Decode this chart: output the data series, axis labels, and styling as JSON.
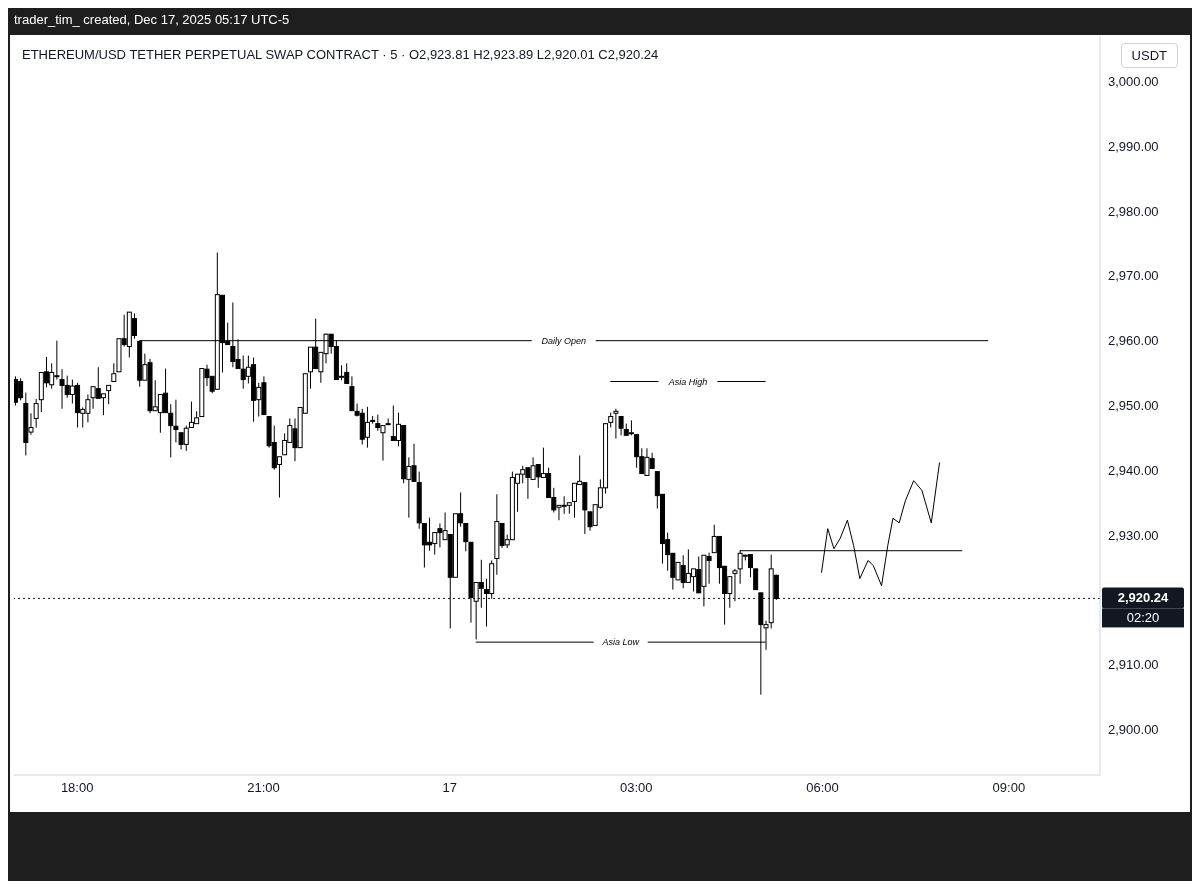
{
  "chart_data": {
    "type": "candlestick",
    "title": "ETHEREUM/USD TETHER PERPETUAL SWAP CONTRACT · 5 · O2,923.81 H2,923.89 L2,920.01 C2,920.24",
    "ylabel": "USDT",
    "color": "#000000",
    "annotations": [
      "trader_tim_ created, Dec 17, 2025 05:17 UTC-5",
      "02:20"
    ],
    "x": [
      "2025-12-16T17:00",
      "2025-12-16T17:05",
      "2025-12-16T17:10",
      "2025-12-16T17:15",
      "2025-12-16T17:20",
      "2025-12-16T17:25",
      "2025-12-16T17:30",
      "2025-12-16T17:35",
      "2025-12-16T17:40",
      "2025-12-16T17:45",
      "2025-12-16T17:50",
      "2025-12-16T17:55",
      "2025-12-16T18:00",
      "2025-12-16T18:05",
      "2025-12-16T18:10",
      "2025-12-16T18:15",
      "2025-12-16T18:20",
      "2025-12-16T18:25",
      "2025-12-16T18:30",
      "2025-12-16T18:35",
      "2025-12-16T18:40",
      "2025-12-16T18:45",
      "2025-12-16T18:50",
      "2025-12-16T18:55",
      "2025-12-16T19:00",
      "2025-12-16T19:05",
      "2025-12-16T19:10",
      "2025-12-16T19:15",
      "2025-12-16T19:20",
      "2025-12-16T19:25",
      "2025-12-16T19:30",
      "2025-12-16T19:35",
      "2025-12-16T19:40",
      "2025-12-16T19:45",
      "2025-12-16T19:50",
      "2025-12-16T19:55",
      "2025-12-16T20:00",
      "2025-12-16T20:05",
      "2025-12-16T20:10",
      "2025-12-16T20:15",
      "2025-12-16T20:20",
      "2025-12-16T20:25",
      "2025-12-16T20:30",
      "2025-12-16T20:35",
      "2025-12-16T20:40",
      "2025-12-16T20:45",
      "2025-12-16T20:50",
      "2025-12-16T20:55",
      "2025-12-16T21:00",
      "2025-12-16T21:05",
      "2025-12-16T21:10",
      "2025-12-16T21:15",
      "2025-12-16T21:20",
      "2025-12-16T21:25",
      "2025-12-16T21:30",
      "2025-12-16T21:35",
      "2025-12-16T21:40",
      "2025-12-16T21:45",
      "2025-12-16T21:50",
      "2025-12-16T21:55",
      "2025-12-16T22:00",
      "2025-12-16T22:05",
      "2025-12-16T22:10",
      "2025-12-16T22:15",
      "2025-12-16T22:20",
      "2025-12-16T22:25",
      "2025-12-16T22:30",
      "2025-12-16T22:35",
      "2025-12-16T22:40",
      "2025-12-16T22:45",
      "2025-12-16T22:50",
      "2025-12-16T22:55",
      "2025-12-16T23:00",
      "2025-12-16T23:05",
      "2025-12-16T23:10",
      "2025-12-16T23:15",
      "2025-12-16T23:20",
      "2025-12-16T23:25",
      "2025-12-16T23:30",
      "2025-12-16T23:35",
      "2025-12-16T23:40",
      "2025-12-16T23:45",
      "2025-12-16T23:50",
      "2025-12-16T23:55",
      "2025-12-17T00:00",
      "2025-12-17T00:05",
      "2025-12-17T00:10",
      "2025-12-17T00:15",
      "2025-12-17T00:20",
      "2025-12-17T00:25",
      "2025-12-17T00:30",
      "2025-12-17T00:35",
      "2025-12-17T00:40",
      "2025-12-17T00:45",
      "2025-12-17T00:50",
      "2025-12-17T00:55",
      "2025-12-17T01:00",
      "2025-12-17T01:05",
      "2025-12-17T01:10",
      "2025-12-17T01:15",
      "2025-12-17T01:20",
      "2025-12-17T01:25",
      "2025-12-17T01:30",
      "2025-12-17T01:35",
      "2025-12-17T01:40",
      "2025-12-17T01:45",
      "2025-12-17T01:50",
      "2025-12-17T01:55",
      "2025-12-17T02:00",
      "2025-12-17T02:05",
      "2025-12-17T02:10",
      "2025-12-17T02:15",
      "2025-12-17T02:20",
      "2025-12-17T02:25",
      "2025-12-17T02:30",
      "2025-12-17T02:35",
      "2025-12-17T02:40",
      "2025-12-17T02:45",
      "2025-12-17T02:50",
      "2025-12-17T02:55",
      "2025-12-17T03:00",
      "2025-12-17T03:05",
      "2025-12-17T03:10",
      "2025-12-17T03:15",
      "2025-12-17T03:20",
      "2025-12-17T03:25",
      "2025-12-17T03:30",
      "2025-12-17T03:35",
      "2025-12-17T03:40",
      "2025-12-17T03:45",
      "2025-12-17T03:50",
      "2025-12-17T03:55",
      "2025-12-17T04:00",
      "2025-12-17T04:05",
      "2025-12-17T04:10",
      "2025-12-17T04:15",
      "2025-12-17T04:20",
      "2025-12-17T04:25",
      "2025-12-17T04:30",
      "2025-12-17T04:35",
      "2025-12-17T04:40",
      "2025-12-17T04:45",
      "2025-12-17T04:50",
      "2025-12-17T04:55",
      "2025-12-17T05:00",
      "2025-12-17T05:05",
      "2025-12-17T05:10",
      "2025-12-17T05:15"
    ],
    "ohlc": [
      [
        2954.0,
        2954.5,
        2950.0,
        2950.5
      ],
      [
        2953.7,
        2954.2,
        2950.8,
        2951.2
      ],
      [
        2950.3,
        2952.0,
        2942.3,
        2944.3
      ],
      [
        2945.9,
        2948.8,
        2945.5,
        2946.6
      ],
      [
        2948.0,
        2951.0,
        2946.6,
        2950.3
      ],
      [
        2950.9,
        2955.1,
        2949.0,
        2955.1
      ],
      [
        2955.2,
        2957.5,
        2952.8,
        2953.5
      ],
      [
        2953.2,
        2956.5,
        2952.6,
        2955.1
      ],
      [
        2954.6,
        2960.0,
        2954.0,
        2954.6
      ],
      [
        2954.0,
        2955.6,
        2949.5,
        2953.1
      ],
      [
        2953.1,
        2954.6,
        2951.2,
        2951.7
      ],
      [
        2951.7,
        2954.0,
        2950.3,
        2953.0
      ],
      [
        2953.1,
        2953.5,
        2946.6,
        2948.9
      ],
      [
        2948.8,
        2949.7,
        2946.6,
        2949.4
      ],
      [
        2948.8,
        2951.7,
        2947.4,
        2950.9
      ],
      [
        2951.2,
        2952.9,
        2949.5,
        2952.9
      ],
      [
        2952.6,
        2955.9,
        2951.1,
        2951.1
      ],
      [
        2951.2,
        2951.8,
        2948.5,
        2951.8
      ],
      [
        2952.3,
        2953.1,
        2950.2,
        2953.1
      ],
      [
        2953.7,
        2956.5,
        2953.7,
        2954.9
      ],
      [
        2955.2,
        2960.3,
        2955.2,
        2960.3
      ],
      [
        2960.3,
        2964.0,
        2959.1,
        2959.4
      ],
      [
        2959.1,
        2964.4,
        2957.4,
        2964.4
      ],
      [
        2963.4,
        2964.2,
        2960.3,
        2960.8
      ],
      [
        2959.9,
        2959.9,
        2952.9,
        2953.9
      ],
      [
        2953.9,
        2958.0,
        2953.9,
        2956.3
      ],
      [
        2956.6,
        2957.2,
        2948.8,
        2949.2
      ],
      [
        2949.2,
        2953.9,
        2949.2,
        2949.8
      ],
      [
        2948.9,
        2951.7,
        2945.8,
        2951.7
      ],
      [
        2951.9,
        2955.7,
        2948.9,
        2948.9
      ],
      [
        2948.8,
        2950.2,
        2942.0,
        2946.9
      ],
      [
        2946.8,
        2950.9,
        2944.3,
        2946.3
      ],
      [
        2945.8,
        2945.8,
        2943.2,
        2944.0
      ],
      [
        2944.0,
        2946.9,
        2943.0,
        2946.5
      ],
      [
        2946.6,
        2950.6,
        2946.6,
        2947.4
      ],
      [
        2947.2,
        2949.1,
        2947.2,
        2948.1
      ],
      [
        2948.3,
        2955.7,
        2948.3,
        2955.7
      ],
      [
        2955.6,
        2956.3,
        2953.0,
        2954.3
      ],
      [
        2954.5,
        2954.5,
        2951.9,
        2952.2
      ],
      [
        2952.5,
        2973.6,
        2952.5,
        2967.1
      ],
      [
        2967.0,
        2967.0,
        2955.1,
        2959.7
      ],
      [
        2959.9,
        2962.8,
        2959.4,
        2959.4
      ],
      [
        2959.1,
        2965.9,
        2955.9,
        2956.8
      ],
      [
        2957.1,
        2960.2,
        2955.7,
        2955.7
      ],
      [
        2955.6,
        2957.7,
        2952.6,
        2954.0
      ],
      [
        2954.5,
        2957.7,
        2953.4,
        2955.9
      ],
      [
        2956.3,
        2957.4,
        2947.5,
        2950.8
      ],
      [
        2950.9,
        2953.5,
        2948.3,
        2952.8
      ],
      [
        2953.5,
        2954.5,
        2948.6,
        2948.6
      ],
      [
        2948.3,
        2948.3,
        2943.5,
        2943.8
      ],
      [
        2944.3,
        2946.9,
        2940.1,
        2940.4
      ],
      [
        2940.9,
        2942.1,
        2935.8,
        2942.1
      ],
      [
        2942.4,
        2945.7,
        2942.4,
        2944.6
      ],
      [
        2944.3,
        2948.0,
        2944.3,
        2946.9
      ],
      [
        2946.4,
        2948.0,
        2941.4,
        2943.5
      ],
      [
        2943.5,
        2949.7,
        2943.5,
        2949.7
      ],
      [
        2948.8,
        2954.9,
        2948.8,
        2954.9
      ],
      [
        2955.2,
        2959.0,
        2952.6,
        2959.0
      ],
      [
        2959.0,
        2963.4,
        2955.7,
        2955.7
      ],
      [
        2955.2,
        2958.2,
        2953.5,
        2958.2
      ],
      [
        2958.0,
        2961.1,
        2956.5,
        2961.0
      ],
      [
        2961.0,
        2961.0,
        2958.0,
        2959.1
      ],
      [
        2959.1,
        2960.0,
        2954.0,
        2954.0
      ],
      [
        2954.5,
        2956.2,
        2953.9,
        2954.5
      ],
      [
        2955.1,
        2956.5,
        2953.4,
        2953.4
      ],
      [
        2952.9,
        2954.5,
        2949.2,
        2949.2
      ],
      [
        2949.1,
        2950.3,
        2948.3,
        2948.5
      ],
      [
        2948.8,
        2949.5,
        2944.0,
        2944.8
      ],
      [
        2945.1,
        2949.8,
        2943.5,
        2947.4
      ],
      [
        2947.7,
        2948.4,
        2947.2,
        2947.7
      ],
      [
        2947.2,
        2948.6,
        2946.1,
        2946.6
      ],
      [
        2945.8,
        2946.9,
        2941.5,
        2946.9
      ],
      [
        2947.2,
        2948.0,
        2947.0,
        2947.2
      ],
      [
        2945.2,
        2950.0,
        2944.6,
        2944.6
      ],
      [
        2944.6,
        2948.9,
        2943.7,
        2947.1
      ],
      [
        2946.9,
        2946.9,
        2938.0,
        2938.7
      ],
      [
        2938.6,
        2942.0,
        2932.7,
        2940.6
      ],
      [
        2940.7,
        2944.1,
        2938.3,
        2938.3
      ],
      [
        2938.1,
        2939.8,
        2931.0,
        2931.9
      ],
      [
        2931.8,
        2931.8,
        2925.0,
        2928.5
      ],
      [
        2928.9,
        2932.7,
        2927.6,
        2928.5
      ],
      [
        2928.7,
        2930.4,
        2927.0,
        2930.4
      ],
      [
        2931.0,
        2931.8,
        2928.1,
        2930.4
      ],
      [
        2929.3,
        2933.5,
        2929.3,
        2930.7
      ],
      [
        2930.1,
        2930.1,
        2915.6,
        2923.5
      ],
      [
        2923.5,
        2933.3,
        2923.5,
        2933.3
      ],
      [
        2933.3,
        2936.6,
        2931.3,
        2931.9
      ],
      [
        2931.8,
        2931.8,
        2927.5,
        2929.0
      ],
      [
        2928.9,
        2928.9,
        2916.5,
        2920.4
      ],
      [
        2919.8,
        2922.7,
        2913.9,
        2922.7
      ],
      [
        2922.7,
        2926.2,
        2918.8,
        2921.8
      ],
      [
        2921.6,
        2923.3,
        2915.9,
        2921.0
      ],
      [
        2921.0,
        2926.1,
        2920.2,
        2925.6
      ],
      [
        2926.4,
        2936.3,
        2923.9,
        2932.1
      ],
      [
        2931.8,
        2931.8,
        2928.0,
        2928.4
      ],
      [
        2928.5,
        2930.1,
        2928.0,
        2929.3
      ],
      [
        2929.3,
        2939.8,
        2929.3,
        2938.9
      ],
      [
        2938.0,
        2939.4,
        2933.6,
        2939.4
      ],
      [
        2939.4,
        2940.7,
        2938.0,
        2940.1
      ],
      [
        2940.4,
        2940.4,
        2935.6,
        2938.9
      ],
      [
        2938.6,
        2942.0,
        2938.6,
        2940.7
      ],
      [
        2940.9,
        2940.9,
        2937.3,
        2939.0
      ],
      [
        2938.9,
        2943.5,
        2938.9,
        2939.5
      ],
      [
        2939.5,
        2940.4,
        2935.8,
        2935.8
      ],
      [
        2935.8,
        2937.3,
        2933.5,
        2933.9
      ],
      [
        2934.3,
        2934.6,
        2932.3,
        2934.6
      ],
      [
        2934.6,
        2936.0,
        2933.3,
        2934.6
      ],
      [
        2934.6,
        2935.0,
        2933.3,
        2935.0
      ],
      [
        2935.2,
        2938.0,
        2932.7,
        2938.0
      ],
      [
        2937.8,
        2942.3,
        2937.8,
        2938.3
      ],
      [
        2938.1,
        2938.1,
        2930.2,
        2933.9
      ],
      [
        2933.6,
        2933.6,
        2930.7,
        2931.3
      ],
      [
        2931.5,
        2934.7,
        2931.5,
        2934.7
      ],
      [
        2934.3,
        2938.6,
        2934.1,
        2937.3
      ],
      [
        2937.3,
        2947.2,
        2936.4,
        2947.2
      ],
      [
        2947.4,
        2948.9,
        2946.6,
        2948.3
      ],
      [
        2948.8,
        2949.5,
        2944.9,
        2949.1
      ],
      [
        2948.3,
        2948.3,
        2945.4,
        2946.5
      ],
      [
        2946.3,
        2947.2,
        2945.4,
        2945.4
      ],
      [
        2945.8,
        2947.7,
        2945.4,
        2945.8
      ],
      [
        2945.5,
        2945.5,
        2940.4,
        2942.1
      ],
      [
        2942.1,
        2943.4,
        2939.5,
        2939.5
      ],
      [
        2939.2,
        2943.4,
        2939.2,
        2942.0
      ],
      [
        2941.8,
        2942.7,
        2940.3,
        2940.3
      ],
      [
        2939.8,
        2939.8,
        2934.1,
        2936.1
      ],
      [
        2936.3,
        2936.3,
        2925.6,
        2928.7
      ],
      [
        2929.3,
        2930.4,
        2924.5,
        2927.0
      ],
      [
        2927.2,
        2927.2,
        2921.6,
        2923.5
      ],
      [
        2923.1,
        2925.8,
        2923.1,
        2925.8
      ],
      [
        2925.3,
        2926.9,
        2921.8,
        2922.7
      ],
      [
        2922.7,
        2927.8,
        2922.7,
        2924.1
      ],
      [
        2923.6,
        2924.8,
        2921.3,
        2924.8
      ],
      [
        2924.7,
        2926.7,
        2921.1,
        2921.1
      ],
      [
        2922.1,
        2926.9,
        2919.0,
        2926.9
      ],
      [
        2926.7,
        2927.3,
        2922.5,
        2926.1
      ],
      [
        2927.3,
        2931.6,
        2927.3,
        2929.8
      ],
      [
        2929.8,
        2929.8,
        2922.5,
        2925.0
      ],
      [
        2925.2,
        2925.2,
        2916.2,
        2921.0
      ],
      [
        2921.0,
        2923.6,
        2918.8,
        2923.6
      ],
      [
        2924.1,
        2924.8,
        2919.8,
        2924.5
      ],
      [
        2924.8,
        2927.6,
        2922.5,
        2927.2
      ],
      [
        2926.9,
        2927.0,
        2926.1,
        2926.9
      ],
      [
        2927.0,
        2927.0,
        2923.5,
        2925.0
      ],
      [
        2924.8,
        2924.8,
        2921.6,
        2921.6
      ],
      [
        2921.1,
        2921.1,
        2905.4,
        2916.2
      ],
      [
        2915.7,
        2916.8,
        2912.3,
        2916.2
      ],
      [
        2916.5,
        2927.0,
        2915.6,
        2924.8
      ],
      [
        2923.81,
        2923.89,
        2920.01,
        2920.24
      ]
    ],
    "series": [
      {
        "type": "line",
        "name": "Daily Open",
        "color": "#000000",
        "x": [
          "2025-12-16T19:00",
          "2025-12-17T08:40"
        ],
        "values": [
          2960,
          2960
        ]
      },
      {
        "type": "line",
        "name": "Asia High",
        "color": "#000000",
        "x": [
          "2025-12-17T02:35",
          "2025-12-17T05:05"
        ],
        "values": [
          2953.7,
          2953.7
        ]
      },
      {
        "type": "line",
        "name": "Asia Low",
        "color": "#000000",
        "x": [
          "2025-12-17T00:25",
          "2025-12-17T05:05"
        ],
        "values": [
          2913.5,
          2913.5
        ]
      },
      {
        "type": "line",
        "color": "#000000",
        "x": [
          "2025-12-17T04:40",
          "2025-12-17T08:15"
        ],
        "values": [
          2927.6,
          2927.6
        ]
      },
      {
        "type": "line",
        "color": "#000000",
        "x": [
          "2025-12-17T05:59",
          "2025-12-17T06:05",
          "2025-12-17T06:11",
          "2025-12-17T06:17",
          "2025-12-17T06:24",
          "2025-12-17T06:30",
          "2025-12-17T06:36",
          "2025-12-17T06:44",
          "2025-12-17T06:49",
          "2025-12-17T06:57",
          "2025-12-17T07:03",
          "2025-12-17T07:08",
          "2025-12-17T07:14",
          "2025-12-17T07:20",
          "2025-12-17T07:28",
          "2025-12-17T07:36",
          "2025-12-17T07:45",
          "2025-12-17T07:53"
        ],
        "values": [
          2924.2,
          2931.0,
          2927.9,
          2929.5,
          2932.3,
          2928.4,
          2923.3,
          2926.1,
          2925.3,
          2922.2,
          2928.4,
          2932.6,
          2931.9,
          2935.3,
          2938.4,
          2936.9,
          2931.9,
          2941.2
        ]
      }
    ],
    "ref_lines": [
      {
        "axis": "y",
        "value": 2920.24,
        "label": "2,920.24",
        "line_style": "dotted",
        "color": "#131722"
      }
    ],
    "xlim": [
      "2025-12-16T16:59",
      "2025-12-17T10:28"
    ],
    "xticks": [
      {
        "value": "2025-12-16T18:00",
        "label": "18:00"
      },
      {
        "value": "2025-12-16T21:00",
        "label": "21:00"
      },
      {
        "value": "2025-12-17T00:00",
        "label": "17"
      },
      {
        "value": "2025-12-17T03:00",
        "label": "03:00"
      },
      {
        "value": "2025-12-17T06:00",
        "label": "06:00"
      },
      {
        "value": "2025-12-17T09:00",
        "label": "09:00"
      }
    ],
    "ylim": [
      2893,
      3007
    ],
    "yticks": [
      {
        "value": 2900,
        "label": "2,900.00"
      },
      {
        "value": 2910,
        "label": "2,910.00"
      },
      {
        "value": 2920,
        "label": null
      },
      {
        "value": 2930,
        "label": "2,930.00"
      },
      {
        "value": 2940,
        "label": "2,940.00"
      },
      {
        "value": 2950,
        "label": "2,950.00"
      },
      {
        "value": 2960,
        "label": "2,960.00"
      },
      {
        "value": 2970,
        "label": "2,970.00"
      },
      {
        "value": 2980,
        "label": "2,980.00"
      },
      {
        "value": 2990,
        "label": "2,990.00"
      },
      {
        "value": 3000,
        "label": "3,000.00"
      }
    ]
  }
}
